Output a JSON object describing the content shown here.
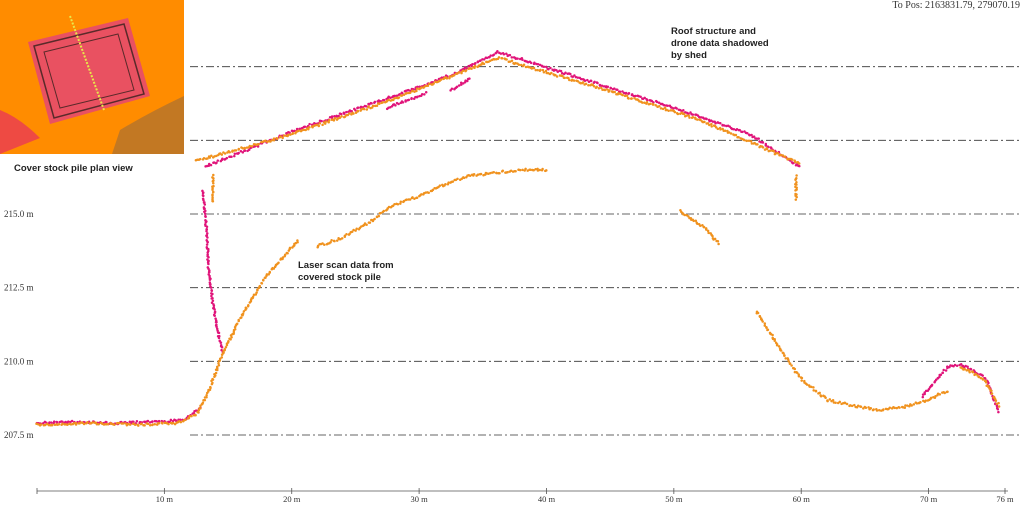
{
  "position_readout": "To Pos: 2163831.79, 279070.19",
  "annotations": {
    "roof": [
      "Roof structure and",
      "drone data shadowed",
      "by shed"
    ],
    "laser": [
      "Laser scan data from",
      "covered stock pile"
    ],
    "plan": "Cover stock pile plan view"
  },
  "colors": {
    "drone": "#e0147a",
    "laser": "#f0921e",
    "inset_bg": "#ff8c00",
    "grid": "#333333"
  },
  "chart_data": {
    "type": "scatter",
    "title": "",
    "xlabel": "",
    "ylabel": "",
    "xlim": [
      0,
      76
    ],
    "ylim": [
      207.0,
      219.5
    ],
    "x_ticks": [
      10,
      20,
      30,
      40,
      50,
      60,
      70,
      76
    ],
    "x_tick_labels": [
      "10 m",
      "20 m",
      "30 m",
      "40 m",
      "50 m",
      "60 m",
      "70 m",
      "76 m"
    ],
    "y_ticks": [
      207.5,
      210.0,
      212.5,
      215.0
    ],
    "y_tick_labels": [
      "207.5 m",
      "210.0 m",
      "212.5 m",
      "215.0 m"
    ],
    "extra_gridlines_y": [
      217.5,
      220.0
    ],
    "grid": "horizontal dash-dot",
    "series": [
      {
        "role": "drone",
        "segments": [
          [
            [
              0,
              207.9
            ],
            [
              3,
              207.95
            ],
            [
              6,
              207.9
            ],
            [
              9,
              207.95
            ],
            [
              11.5,
              208.0
            ],
            [
              12.8,
              208.4
            ]
          ],
          [
            [
              13.2,
              216.6
            ],
            [
              20,
              217.8
            ],
            [
              28,
              219.0
            ],
            [
              33,
              219.8
            ],
            [
              36.2,
              220.5
            ],
            [
              42,
              219.7
            ],
            [
              50,
              218.6
            ],
            [
              56,
              217.7
            ],
            [
              59.9,
              216.6
            ]
          ],
          [
            [
              27.5,
              218.6
            ],
            [
              30.5,
              219.1
            ]
          ],
          [
            [
              32.5,
              219.2
            ],
            [
              34.0,
              219.6
            ]
          ],
          [
            [
              13.0,
              215.8
            ],
            [
              13.3,
              214.5
            ],
            [
              13.5,
              213.0
            ],
            [
              13.8,
              212.0
            ],
            [
              14.1,
              211.2
            ],
            [
              14.6,
              210.3
            ]
          ],
          [
            [
              69.5,
              208.8
            ],
            [
              70.5,
              209.3
            ],
            [
              71.5,
              209.8
            ],
            [
              72.5,
              209.9
            ],
            [
              73.5,
              209.7
            ],
            [
              74.5,
              209.4
            ],
            [
              75.5,
              208.3
            ]
          ]
        ]
      },
      {
        "role": "laser",
        "segments": [
          [
            [
              0,
              207.85
            ],
            [
              4,
              207.9
            ],
            [
              8,
              207.85
            ],
            [
              11,
              207.9
            ],
            [
              12.5,
              208.2
            ],
            [
              13.5,
              209.0
            ],
            [
              14.5,
              210.2
            ],
            [
              16,
              211.5
            ],
            [
              18,
              212.9
            ],
            [
              20.5,
              214.1
            ]
          ],
          [
            [
              22,
              213.9
            ],
            [
              24,
              214.2
            ],
            [
              26,
              214.7
            ],
            [
              28,
              215.3
            ],
            [
              30,
              215.6
            ],
            [
              32,
              216.0
            ],
            [
              34,
              216.3
            ],
            [
              36,
              216.4
            ],
            [
              38,
              216.5
            ],
            [
              40,
              216.5
            ]
          ],
          [
            [
              13.8,
              216.3
            ],
            [
              13.8,
              215.4
            ]
          ],
          [
            [
              59.6,
              216.3
            ],
            [
              59.6,
              215.5
            ]
          ],
          [
            [
              50.5,
              215.1
            ],
            [
              51.5,
              214.8
            ],
            [
              52.5,
              214.5
            ],
            [
              53.5,
              214.0
            ]
          ],
          [
            [
              56.5,
              211.7
            ],
            [
              57.5,
              211.0
            ],
            [
              58.5,
              210.3
            ],
            [
              60,
              209.4
            ],
            [
              62,
              208.7
            ],
            [
              64,
              208.5
            ],
            [
              66,
              208.35
            ],
            [
              68,
              208.45
            ],
            [
              70,
              208.7
            ],
            [
              71.5,
              209.0
            ]
          ],
          [
            [
              72.5,
              209.8
            ],
            [
              73.5,
              209.6
            ],
            [
              74.5,
              209.3
            ],
            [
              75.5,
              208.5
            ]
          ],
          [
            [
              12.5,
              216.8
            ],
            [
              20,
              217.7
            ],
            [
              28,
              218.9
            ],
            [
              36.2,
              220.3
            ],
            [
              44,
              219.3
            ],
            [
              52,
              218.2
            ],
            [
              59.9,
              216.7
            ]
          ]
        ]
      }
    ]
  }
}
